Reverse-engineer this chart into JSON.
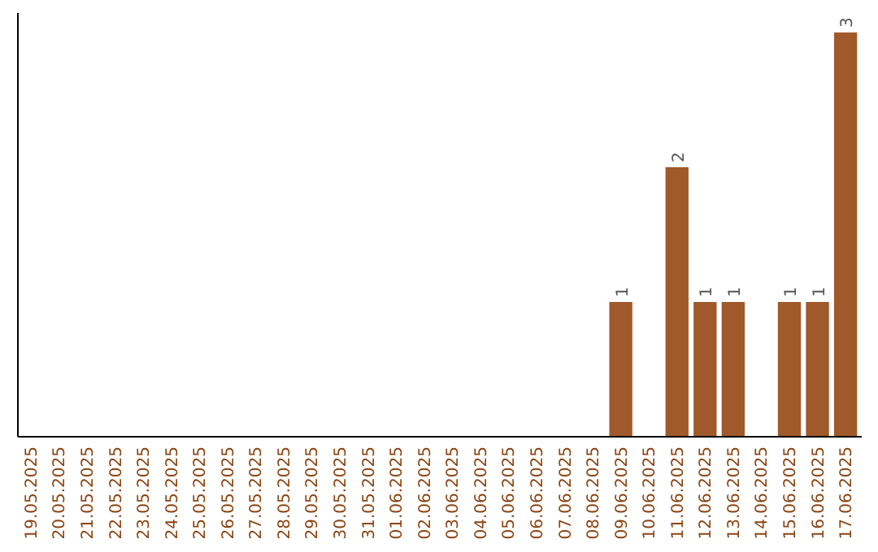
{
  "chart_data": {
    "type": "bar",
    "categories": [
      "19.05.2025",
      "20.05.2025",
      "21.05.2025",
      "22.05.2025",
      "23.05.2025",
      "24.05.2025",
      "25.05.2025",
      "26.05.2025",
      "27.05.2025",
      "28.05.2025",
      "29.05.2025",
      "30.05.2025",
      "31.05.2025",
      "01.06.2025",
      "02.06.2025",
      "03.06.2025",
      "04.06.2025",
      "05.06.2025",
      "06.06.2025",
      "07.06.2025",
      "08.06.2025",
      "09.06.2025",
      "10.06.2025",
      "11.06.2025",
      "12.06.2025",
      "13.06.2025",
      "14.06.2025",
      "15.06.2025",
      "16.06.2025",
      "17.06.2025"
    ],
    "values": [
      null,
      null,
      null,
      null,
      null,
      null,
      null,
      null,
      null,
      null,
      null,
      null,
      null,
      null,
      null,
      null,
      null,
      null,
      null,
      null,
      null,
      1,
      null,
      2,
      1,
      1,
      null,
      1,
      1,
      3
    ],
    "data_labels": true,
    "color": "#a0592b",
    "grid": false
  }
}
